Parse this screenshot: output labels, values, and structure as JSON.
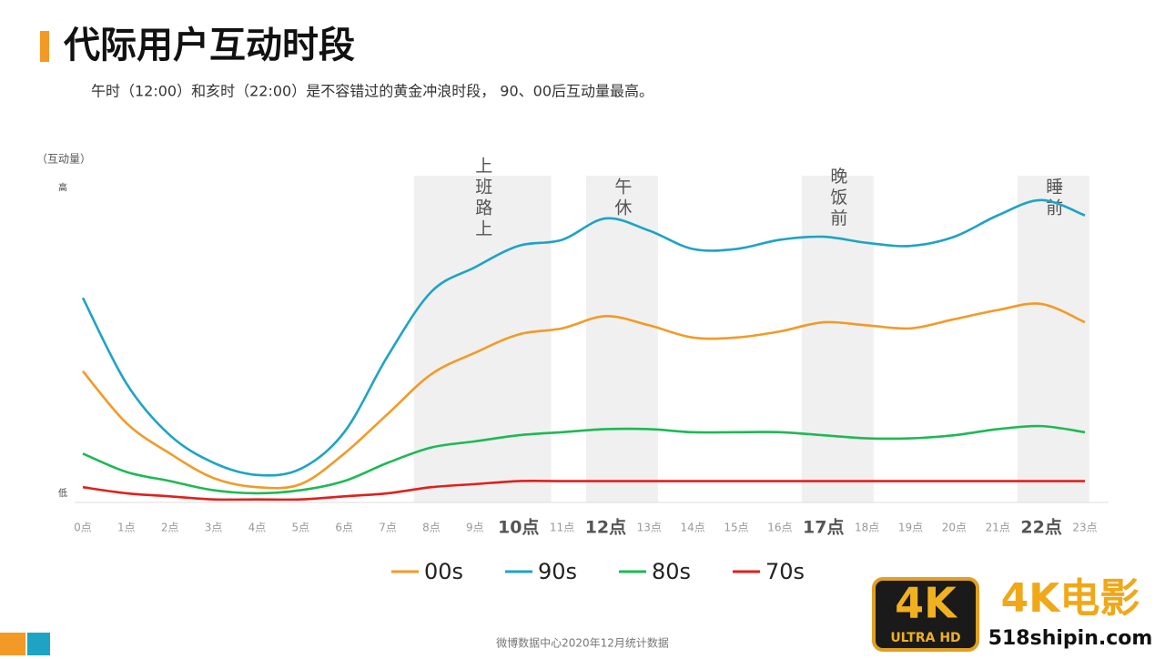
{
  "header": {
    "title": "代际用户互动时段",
    "subtitle": "午时（12:00）和亥时（22:00）是不容错过的黄金冲浪时段， 90、00后互动量最高。"
  },
  "chart_data": {
    "type": "line",
    "y_label": "（互动量）",
    "categories": [
      "0点",
      "1点",
      "2点",
      "3点",
      "4点",
      "5点",
      "6点",
      "7点",
      "8点",
      "9点",
      "10点",
      "11点",
      "12点",
      "13点",
      "14点",
      "15点",
      "16点",
      "17点",
      "18点",
      "19点",
      "20点",
      "21点",
      "22点",
      "23点"
    ],
    "series": [
      {
        "name": "00s",
        "color": "#f39a26",
        "values": [
          40,
          23,
          13,
          5,
          2,
          3,
          13,
          26,
          39,
          46,
          52,
          54,
          58,
          55,
          51,
          51,
          53,
          56,
          55,
          54,
          57,
          60,
          62,
          56
        ]
      },
      {
        "name": "90s",
        "color": "#1fa3c4",
        "values": [
          64,
          36,
          19,
          10,
          6,
          8,
          20,
          45,
          66,
          74,
          81,
          83,
          90,
          86,
          80,
          80,
          83,
          84,
          82,
          81,
          84,
          91,
          96,
          91
        ]
      },
      {
        "name": "80s",
        "color": "#1db954",
        "values": [
          13,
          7,
          4,
          1,
          0,
          1,
          4,
          10,
          15,
          17,
          19,
          20,
          21,
          21,
          20,
          20,
          20,
          19,
          18,
          18,
          19,
          21,
          22,
          20
        ]
      },
      {
        "name": "70s",
        "color": "#e0201c",
        "values": [
          2,
          0,
          -1,
          -2,
          -2,
          -2,
          -1,
          0,
          2,
          3,
          4,
          4,
          4,
          4,
          4,
          4,
          4,
          4,
          4,
          4,
          4,
          4,
          4,
          4
        ]
      }
    ],
    "ylim": [
      -3,
      104
    ],
    "yticks": [
      {
        "value": 0,
        "label": "低"
      },
      {
        "value": 100,
        "label": "高"
      }
    ],
    "annotations": [
      "上班路上",
      "午休",
      "晚饭前",
      "睡前"
    ]
  },
  "footer": "微博数据中心2020年12月统计数据",
  "watermark": {
    "badge": "4K",
    "badge_sub": "ULTRA HD",
    "title": "4K电影",
    "site": "518shipin.com"
  }
}
